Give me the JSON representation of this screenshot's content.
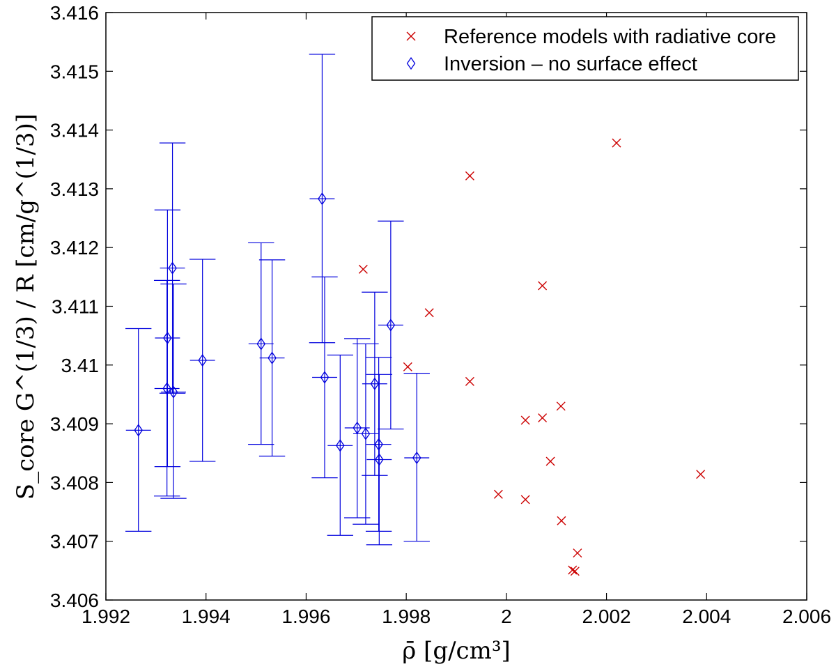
{
  "chart_data": {
    "type": "scatter",
    "xlabel": "ρ̄ [g/cm³]",
    "ylabel": "S_core G^(1/3) / R [cm/g^(1/3)]",
    "xlim": [
      1.992,
      2.006
    ],
    "ylim": [
      3.406,
      3.416
    ],
    "xticks": [
      1.992,
      1.994,
      1.996,
      1.998,
      2.0,
      2.002,
      2.004,
      2.006
    ],
    "xtick_labels": [
      "1.992",
      "1.994",
      "1.996",
      "1.998",
      "2",
      "2.002",
      "2.004",
      "2.006"
    ],
    "yticks": [
      3.406,
      3.407,
      3.408,
      3.409,
      3.41,
      3.411,
      3.412,
      3.413,
      3.414,
      3.415,
      3.416
    ],
    "ytick_labels": [
      "3.406",
      "3.407",
      "3.408",
      "3.409",
      "3.41",
      "3.411",
      "3.412",
      "3.413",
      "3.414",
      "3.415",
      "3.416"
    ],
    "grid": false,
    "legend_position": "top-right",
    "series": [
      {
        "name": "Reference models with radiative core",
        "marker": "x",
        "color": "#cc0000",
        "points": [
          {
            "x": 2.0022,
            "y": 3.41378
          },
          {
            "x": 1.99927,
            "y": 3.41322
          },
          {
            "x": 1.99714,
            "y": 3.41163
          },
          {
            "x": 2.00072,
            "y": 3.41135
          },
          {
            "x": 1.99846,
            "y": 3.41089
          },
          {
            "x": 1.99803,
            "y": 3.40997
          },
          {
            "x": 1.99927,
            "y": 3.40972
          },
          {
            "x": 2.00109,
            "y": 3.4093
          },
          {
            "x": 2.00038,
            "y": 3.40906
          },
          {
            "x": 2.00072,
            "y": 3.4091
          },
          {
            "x": 2.00088,
            "y": 3.40836
          },
          {
            "x": 2.00388,
            "y": 3.40814
          },
          {
            "x": 1.99984,
            "y": 3.4078
          },
          {
            "x": 2.00038,
            "y": 3.40771
          },
          {
            "x": 2.0011,
            "y": 3.40735
          },
          {
            "x": 2.00142,
            "y": 3.4068
          },
          {
            "x": 2.00132,
            "y": 3.40651
          },
          {
            "x": 2.00137,
            "y": 3.40649
          }
        ]
      },
      {
        "name": "Inversion – no surface effect",
        "marker": "diamond",
        "color": "#0000dd",
        "points": [
          {
            "x": 1.99265,
            "y": 3.40889,
            "ylo": 3.40717,
            "yhi": 3.41062
          },
          {
            "x": 1.99323,
            "y": 3.41046,
            "ylo": 3.40827,
            "yhi": 3.41264
          },
          {
            "x": 1.99322,
            "y": 3.4096,
            "ylo": 3.40777,
            "yhi": 3.41144
          },
          {
            "x": 1.99333,
            "y": 3.41165,
            "ylo": 3.40952,
            "yhi": 3.41378
          },
          {
            "x": 1.99335,
            "y": 3.40954,
            "ylo": 3.40773,
            "yhi": 3.41138
          },
          {
            "x": 1.99393,
            "y": 3.41008,
            "ylo": 3.40836,
            "yhi": 3.4118
          },
          {
            "x": 1.9951,
            "y": 3.41036,
            "ylo": 3.40865,
            "yhi": 3.41208
          },
          {
            "x": 1.99532,
            "y": 3.41012,
            "ylo": 3.40845,
            "yhi": 3.41179
          },
          {
            "x": 1.99632,
            "y": 3.41283,
            "ylo": 3.41038,
            "yhi": 3.41529
          },
          {
            "x": 1.99637,
            "y": 3.40979,
            "ylo": 3.40808,
            "yhi": 3.4115
          },
          {
            "x": 1.99668,
            "y": 3.40863,
            "ylo": 3.4071,
            "yhi": 3.41017
          },
          {
            "x": 1.99702,
            "y": 3.40893,
            "ylo": 3.4074,
            "yhi": 3.41045
          },
          {
            "x": 1.99719,
            "y": 3.40883,
            "ylo": 3.40729,
            "yhi": 3.41036
          },
          {
            "x": 1.99737,
            "y": 3.40968,
            "ylo": 3.40812,
            "yhi": 3.41124
          },
          {
            "x": 1.99745,
            "y": 3.40865,
            "ylo": 3.40717,
            "yhi": 3.41013
          },
          {
            "x": 1.99746,
            "y": 3.40839,
            "ylo": 3.40694,
            "yhi": 3.40984
          },
          {
            "x": 1.99769,
            "y": 3.41068,
            "ylo": 3.40891,
            "yhi": 3.41245
          },
          {
            "x": 1.99821,
            "y": 3.40842,
            "ylo": 3.407,
            "yhi": 3.40986
          }
        ]
      }
    ],
    "capwidth_data": 0.00052
  }
}
